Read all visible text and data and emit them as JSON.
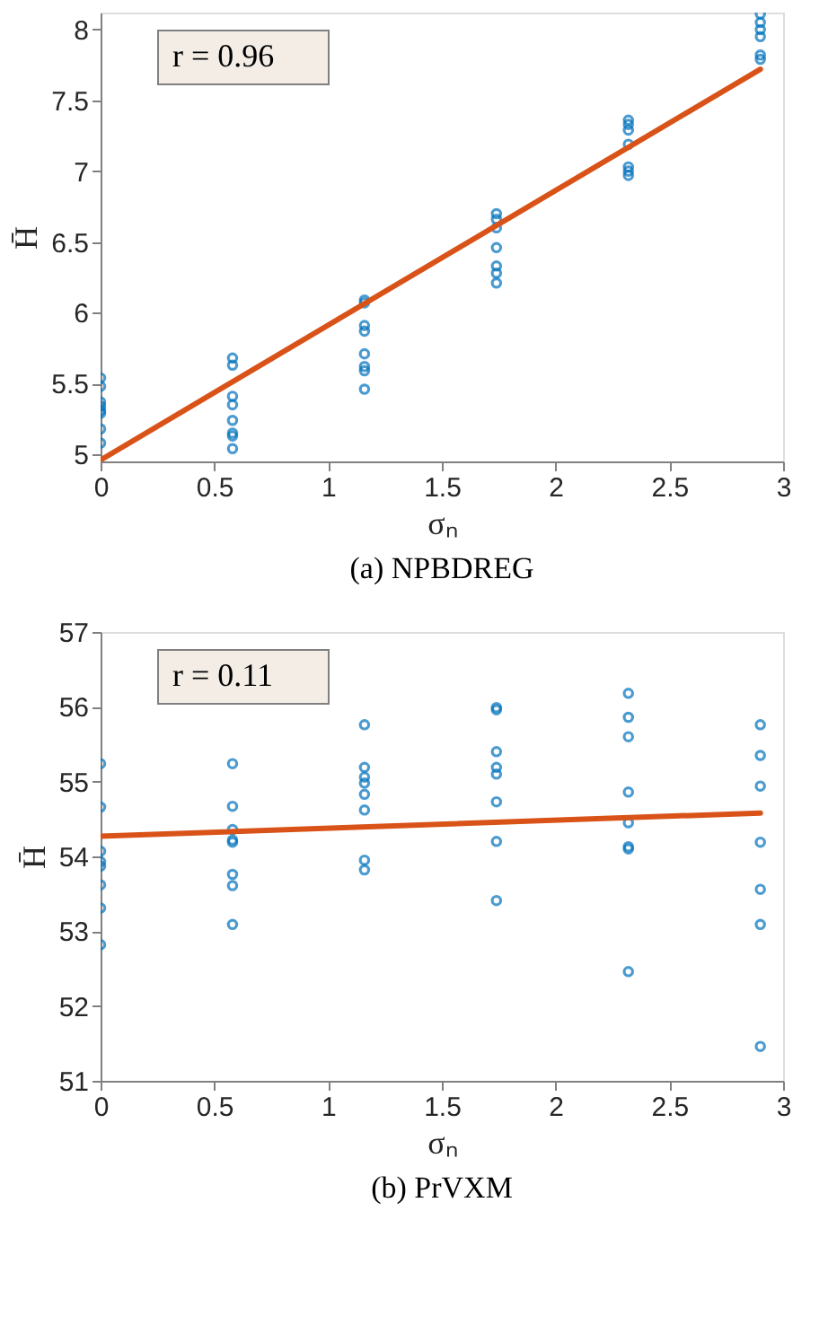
{
  "chart_data": [
    {
      "type": "scatter",
      "title": "(a) NPBDREG",
      "xlabel": "σₙ",
      "ylabel": "H̄",
      "annotations": [
        "r = 0.96"
      ],
      "xlim": [
        0,
        3
      ],
      "xticks": [
        0,
        0.5,
        1,
        1.5,
        2,
        2.5,
        3
      ],
      "ylim": [
        4.95,
        8.12
      ],
      "yticks": [
        5,
        5.5,
        6,
        6.5,
        7,
        7.5,
        8
      ],
      "grid": false,
      "series": [
        {
          "color": "#0072bd",
          "x": [
            0,
            0,
            0,
            0,
            0,
            0,
            0,
            0,
            0.58,
            0.58,
            0.58,
            0.58,
            0.58,
            0.58,
            0.58,
            0.58,
            1.16,
            1.16,
            1.16,
            1.16,
            1.16,
            1.16,
            1.16,
            1.16,
            1.74,
            1.74,
            1.74,
            1.74,
            1.74,
            1.74,
            1.74,
            2.32,
            2.32,
            2.32,
            2.32,
            2.32,
            2.32,
            2.32,
            2.9,
            2.9,
            2.9,
            2.9,
            2.9,
            2.9
          ],
          "values": [
            5.54,
            5.48,
            5.37,
            5.34,
            5.31,
            5.29,
            5.18,
            5.08,
            5.68,
            5.63,
            5.41,
            5.35,
            5.24,
            5.15,
            5.13,
            5.04,
            6.09,
            6.07,
            5.91,
            5.87,
            5.71,
            5.62,
            5.59,
            5.46,
            6.7,
            6.66,
            6.6,
            6.46,
            6.33,
            6.28,
            6.21,
            7.36,
            7.33,
            7.29,
            7.19,
            7.03,
            7.0,
            6.97,
            8.11,
            8.05,
            8.0,
            7.95,
            7.82,
            7.79
          ]
        },
        {
          "type": "line",
          "marker": "none",
          "color": "#d95319",
          "x": [
            0,
            2.9
          ],
          "values": [
            4.96,
            7.72
          ]
        }
      ]
    },
    {
      "type": "scatter",
      "title": "(b) PrVXM",
      "xlabel": "σₙ",
      "ylabel": "H̄",
      "annotations": [
        "r = 0.11"
      ],
      "xlim": [
        0,
        3
      ],
      "xticks": [
        0,
        0.5,
        1,
        1.5,
        2,
        2.5,
        3
      ],
      "ylim": [
        51,
        57
      ],
      "yticks": [
        51,
        52,
        53,
        54,
        55,
        56,
        57
      ],
      "grid": false,
      "series": [
        {
          "color": "#0072bd",
          "x": [
            0,
            0,
            0,
            0,
            0,
            0,
            0,
            0,
            0.58,
            0.58,
            0.58,
            0.58,
            0.58,
            0.58,
            0.58,
            0.58,
            1.16,
            1.16,
            1.16,
            1.16,
            1.16,
            1.16,
            1.16,
            1.16,
            1.74,
            1.74,
            1.74,
            1.74,
            1.74,
            1.74,
            1.74,
            1.74,
            2.32,
            2.32,
            2.32,
            2.32,
            2.32,
            2.32,
            2.32,
            2.32,
            2.9,
            2.9,
            2.9,
            2.9,
            2.9,
            2.9,
            2.9
          ],
          "values": [
            55.24,
            54.66,
            54.07,
            53.93,
            53.87,
            53.62,
            53.31,
            52.82,
            55.24,
            54.67,
            54.36,
            54.22,
            54.19,
            53.76,
            53.61,
            53.09,
            55.76,
            55.19,
            55.06,
            54.98,
            54.83,
            54.62,
            53.95,
            53.82,
            55.99,
            55.96,
            55.4,
            55.19,
            55.1,
            54.73,
            54.2,
            53.41,
            56.18,
            55.86,
            55.6,
            54.86,
            54.45,
            54.13,
            54.1,
            52.46,
            55.76,
            55.35,
            54.94,
            54.19,
            53.56,
            53.09,
            51.46
          ]
        },
        {
          "type": "line",
          "marker": "none",
          "color": "#d95319",
          "x": [
            0,
            2.9
          ],
          "values": [
            54.27,
            54.58
          ]
        }
      ]
    }
  ]
}
